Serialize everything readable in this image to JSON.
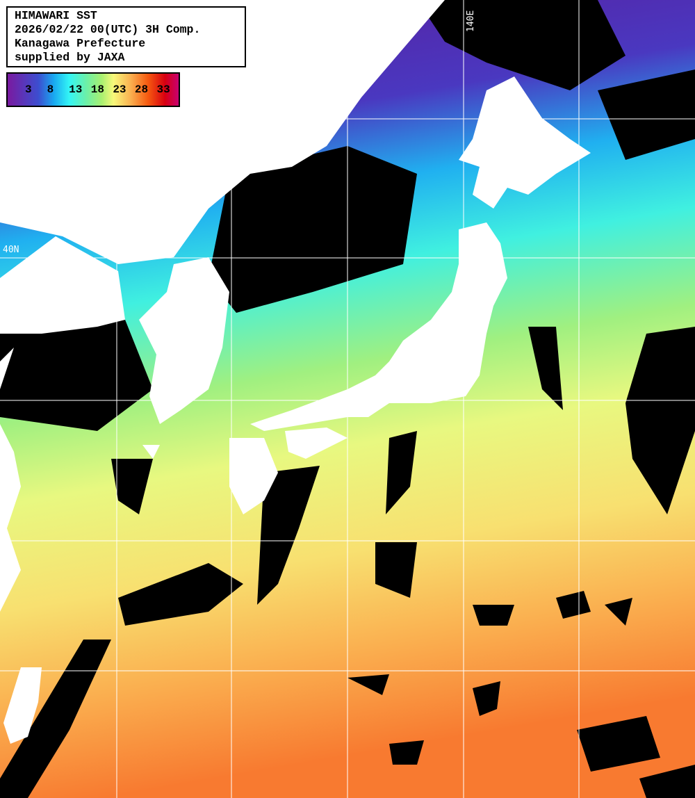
{
  "header": {
    "lines": [
      "HIMAWARI SST",
      "2026/02/22 00(UTC) 3H Comp.",
      "Kanagawa Prefecture",
      "supplied by JAXA"
    ]
  },
  "legend": {
    "unit_ticks": [
      "3",
      "8",
      "13",
      "18",
      "23",
      "28",
      "33"
    ],
    "colors": [
      "#7a1aa0",
      "#3c4ed0",
      "#33f5f5",
      "#a8f070",
      "#f8f87a",
      "#f65a10",
      "#d80010",
      "#c80070"
    ]
  },
  "grid_labels": {
    "longitude": "140E",
    "latitude": "40N"
  },
  "colors": {
    "land": "#ffffff",
    "cloud_no_data": "#000000",
    "grid": "#ffffff"
  }
}
